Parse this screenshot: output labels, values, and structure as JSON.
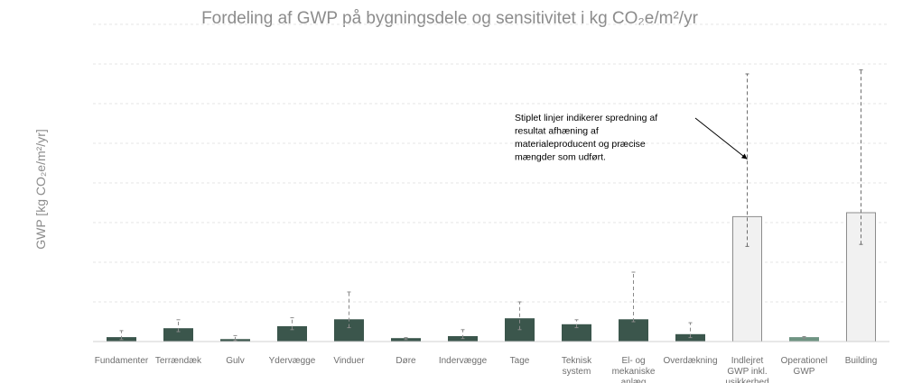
{
  "chart_data": {
    "type": "bar",
    "title": "Fordeling af GWP på bygningsdele og sensitivitet i kg CO₂e/m²/yr",
    "xlabel": "",
    "ylabel": "GWP [kg CO₂e/m²/yr]",
    "ylim": [
      0,
      16
    ],
    "grid": true,
    "legend": "none",
    "categories": [
      [
        "Fundamenter"
      ],
      [
        "Terrændæk"
      ],
      [
        "Gulv"
      ],
      [
        "Ydervægge"
      ],
      [
        "Vinduer"
      ],
      [
        "Døre"
      ],
      [
        "Indervægge"
      ],
      [
        "Tage"
      ],
      [
        "Teknisk",
        "system"
      ],
      [
        "El- og",
        "mekaniske",
        "anlæg"
      ],
      [
        "Overdækning"
      ],
      [
        "Indlejret",
        "GWP inkl.",
        "usikkerhed"
      ],
      [
        "Operationel",
        "GWP"
      ],
      [
        "Building"
      ]
    ],
    "series": [
      {
        "values": [
          0.2,
          0.65,
          0.1,
          0.75,
          1.1,
          0.15,
          0.25,
          1.15,
          0.85,
          1.1,
          0.35,
          6.3,
          0.2,
          6.5
        ],
        "error_low": [
          0.1,
          0.5,
          0.05,
          0.6,
          0.7,
          0.1,
          0.15,
          0.6,
          0.7,
          1.0,
          0.2,
          4.8,
          0.15,
          4.9
        ],
        "error_high": [
          0.55,
          1.1,
          0.3,
          1.2,
          2.5,
          0.2,
          0.6,
          2.0,
          1.1,
          3.5,
          0.95,
          13.5,
          0.25,
          13.7
        ],
        "colors": [
          "#3b564c",
          "#3b564c",
          "#3b564c",
          "#3b564c",
          "#3b564c",
          "#3b564c",
          "#3b564c",
          "#3b564c",
          "#3b564c",
          "#3b564c",
          "#3b564c",
          "#f1f1f1",
          "#6f9483",
          "#f1f1f1"
        ],
        "bar_stroke": [
          "#3b564c",
          "#3b564c",
          "#3b564c",
          "#3b564c",
          "#3b564c",
          "#3b564c",
          "#3b564c",
          "#3b564c",
          "#3b564c",
          "#3b564c",
          "#3b564c",
          "#8c8c8c",
          "#6f9483",
          "#8c8c8c"
        ]
      }
    ],
    "annotation": {
      "text": [
        "Stiplet linjer indikerer spredning af",
        "resultat afhæning af",
        "materialeproducent og præcise",
        "mængder som udført."
      ],
      "arrow_target_category": 11,
      "arrow_target_value": 9.2
    }
  }
}
